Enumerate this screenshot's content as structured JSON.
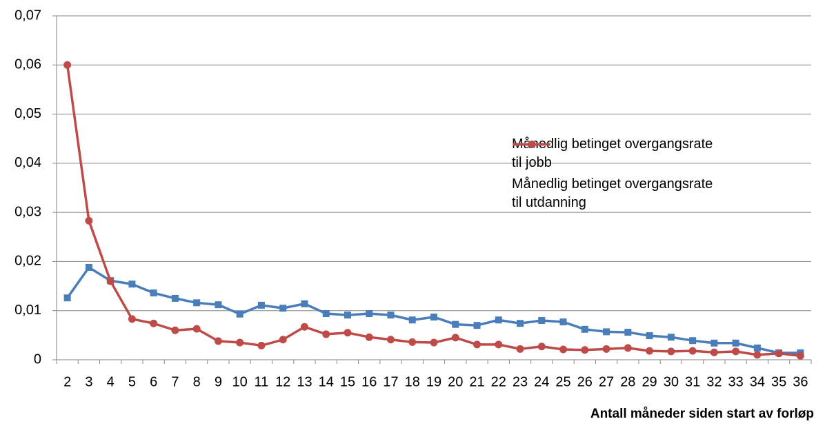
{
  "chart_data": {
    "type": "line",
    "x_label": "Antall måneder siden start av forløp",
    "categories": [
      "2",
      "3",
      "4",
      "5",
      "6",
      "7",
      "8",
      "9",
      "10",
      "11",
      "12",
      "13",
      "14",
      "15",
      "16",
      "17",
      "18",
      "19",
      "20",
      "21",
      "22",
      "23",
      "24",
      "25",
      "26",
      "27",
      "28",
      "29",
      "30",
      "31",
      "32",
      "33",
      "34",
      "35",
      "36"
    ],
    "series": [
      {
        "name": "Månedlig betinget overgangsrate til jobb",
        "color": "#4a7ebb",
        "marker": "square",
        "values": [
          0.0126,
          0.0188,
          0.0161,
          0.0154,
          0.0136,
          0.0125,
          0.0116,
          0.0112,
          0.0093,
          0.0111,
          0.0105,
          0.0114,
          0.0094,
          0.0091,
          0.0094,
          0.0091,
          0.0081,
          0.0087,
          0.0072,
          0.007,
          0.0081,
          0.0074,
          0.008,
          0.0077,
          0.0062,
          0.0057,
          0.0056,
          0.0049,
          0.0046,
          0.0039,
          0.0034,
          0.0034,
          0.0024,
          0.0014,
          0.0014
        ]
      },
      {
        "name": "Månedlig betinget overgangsrate til utdanning",
        "color": "#be4b48",
        "marker": "circle",
        "values": [
          0.06,
          0.0283,
          0.016,
          0.0083,
          0.0074,
          0.006,
          0.0063,
          0.0038,
          0.0035,
          0.0029,
          0.0041,
          0.0067,
          0.0052,
          0.0055,
          0.0046,
          0.0041,
          0.0036,
          0.0035,
          0.0045,
          0.0031,
          0.0031,
          0.0022,
          0.0027,
          0.0021,
          0.002,
          0.0022,
          0.0024,
          0.0018,
          0.0017,
          0.0018,
          0.0015,
          0.0017,
          0.001,
          0.0013,
          0.0008
        ]
      }
    ],
    "ylim": [
      0,
      0.07
    ],
    "yticks": [
      0,
      {
        "value": 0.01,
        "label": "0,01"
      },
      {
        "value": 0.02,
        "label": "0,02"
      },
      {
        "value": 0.03,
        "label": "0,03"
      },
      {
        "value": 0.04,
        "label": "0,04"
      },
      {
        "value": 0.05,
        "label": "0,05"
      },
      {
        "value": 0.06,
        "label": "0,06"
      },
      {
        "value": 0.07,
        "label": "0,07"
      }
    ],
    "grid": true,
    "legend": "right"
  }
}
